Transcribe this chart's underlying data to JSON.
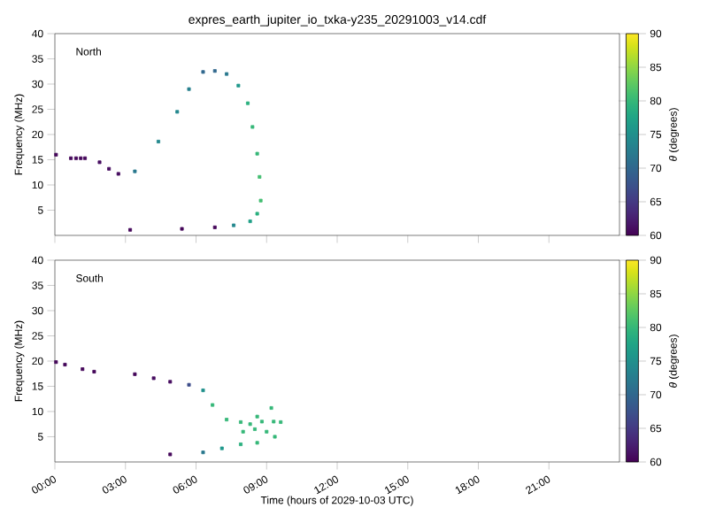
{
  "chart_data": [
    {
      "type": "scatter",
      "title": "expres_earth_jupiter_io_txka-y235_20291003_v14.cdf",
      "ylabel": "Frequency (MHz)",
      "clabel": "*θ* (degrees)",
      "annotations": [
        "North"
      ],
      "marker": "square",
      "tick_labels": "y",
      "x": [
        0.05,
        0.68,
        0.9,
        1.1,
        1.28,
        1.9,
        2.3,
        2.7,
        3.4,
        4.4,
        5.2,
        5.7,
        6.3,
        6.8,
        7.3,
        7.8,
        8.2,
        8.4,
        8.6,
        8.7,
        8.75,
        8.6,
        8.3,
        7.6,
        6.8,
        3.2,
        5.4
      ],
      "values": [
        16,
        15.3,
        15.3,
        15.3,
        15.3,
        14.5,
        13.2,
        12.2,
        12.7,
        18.6,
        24.5,
        29,
        32.4,
        32.6,
        32,
        29.7,
        26.2,
        21.5,
        16.2,
        11.6,
        6.9,
        4.3,
        2.8,
        2,
        1.6,
        1.1,
        1.3
      ],
      "cvalues": [
        60.5,
        60.5,
        60.5,
        60.5,
        60.5,
        61,
        61,
        61,
        72,
        74,
        74,
        73,
        70,
        70,
        72,
        76,
        79,
        80,
        80,
        81,
        81,
        79,
        77,
        74,
        60.5,
        60.5,
        60.5
      ],
      "xlim": [
        0,
        24
      ],
      "xticks": [
        {
          "value": 0,
          "label": null
        },
        {
          "value": 3,
          "label": null
        },
        {
          "value": 6,
          "label": null
        },
        {
          "value": 9,
          "label": null
        },
        {
          "value": 12,
          "label": null
        },
        {
          "value": 15,
          "label": null
        },
        {
          "value": 18,
          "label": null
        },
        {
          "value": 21,
          "label": null
        }
      ],
      "ylim": [
        0,
        40
      ],
      "yticks": [
        5,
        10,
        15,
        20,
        25,
        30,
        35,
        40
      ],
      "clim": [
        60,
        90
      ],
      "cticks": [
        60,
        65,
        70,
        75,
        80,
        85,
        90
      ]
    },
    {
      "type": "scatter",
      "xlabel": "Time (hours of 2029-10-03 UTC)",
      "ylabel": "Frequency (MHz)",
      "clabel": "*θ* (degrees)",
      "annotations": [
        "South"
      ],
      "marker": "square",
      "x": [
        0.05,
        0.43,
        1.175,
        1.67,
        3.4,
        4.2,
        4.9,
        5.7,
        6.3,
        6.7,
        7.3,
        7.9,
        8.6,
        9.2,
        9.6,
        9.35,
        8.6,
        7.9,
        7.1,
        6.3,
        4.9,
        8.0,
        8.5,
        9.0,
        9.3,
        8.8,
        8.3
      ],
      "values": [
        19.8,
        19.3,
        18.4,
        17.9,
        17.4,
        16.6,
        15.9,
        15.3,
        14.2,
        11.3,
        8.4,
        7.9,
        9,
        10.7,
        7.9,
        5,
        3.8,
        3.5,
        2.7,
        1.9,
        1.5,
        6,
        6.5,
        6,
        8,
        8,
        7.5
      ],
      "cvalues": [
        60.5,
        60.5,
        60.5,
        60.5,
        60.5,
        61,
        61,
        67,
        75,
        80,
        80,
        80,
        80,
        80,
        80,
        80,
        80,
        79,
        76,
        72,
        60.5,
        80,
        80,
        80,
        80,
        80,
        80
      ],
      "xlim": [
        0,
        24
      ],
      "xticks": [
        {
          "value": 0,
          "label": "00:00"
        },
        {
          "value": 3,
          "label": "03:00"
        },
        {
          "value": 6,
          "label": "06:00"
        },
        {
          "value": 9,
          "label": "09:00"
        },
        {
          "value": 12,
          "label": "12:00"
        },
        {
          "value": 15,
          "label": "15:00"
        },
        {
          "value": 18,
          "label": "18:00"
        },
        {
          "value": 21,
          "label": "21:00"
        }
      ],
      "ylim": [
        0,
        40
      ],
      "yticks": [
        5,
        10,
        15,
        20,
        25,
        30,
        35,
        40
      ],
      "clim": [
        60,
        90
      ],
      "cticks": [
        60,
        65,
        70,
        75,
        80,
        85,
        90
      ]
    }
  ]
}
